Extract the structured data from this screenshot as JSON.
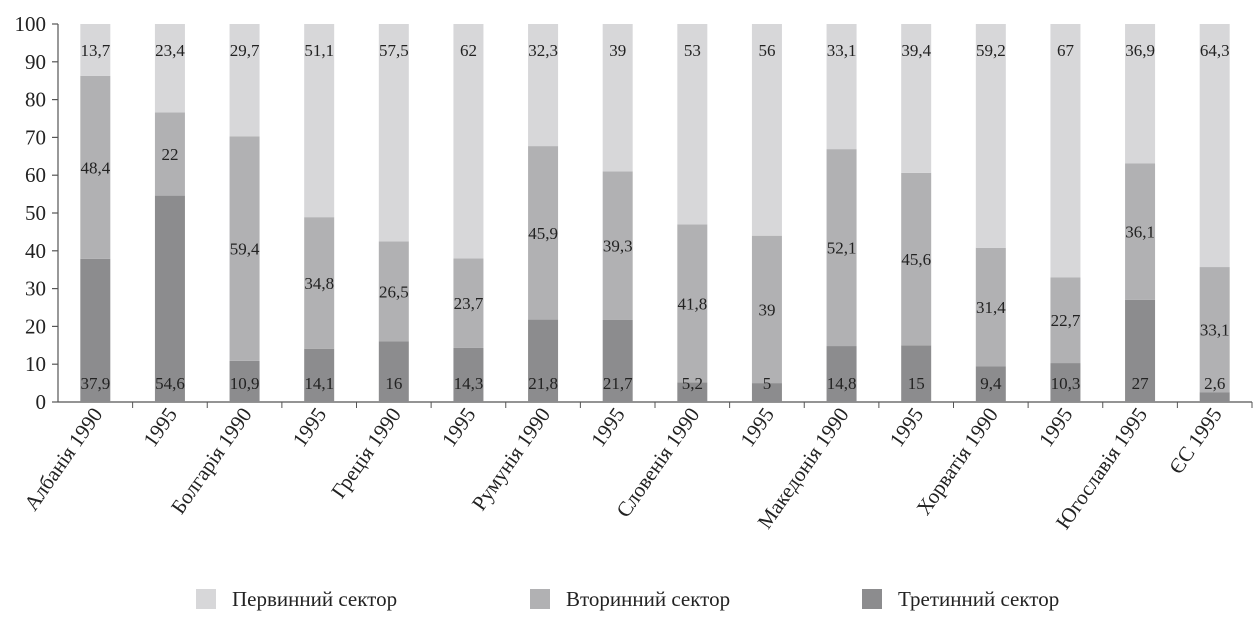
{
  "chart_data": {
    "type": "bar",
    "stacked": true,
    "categories": [
      "Албанія 1990",
      "1995",
      "Болгарія 1990",
      "1995",
      "Греція 1990",
      "1995",
      "Румунія 1990",
      "1995",
      "Словенія 1990",
      "1995",
      "Македонія 1990",
      "1995",
      "Хорватія 1990",
      "1995",
      "Югославія 1995",
      "ЄС 1995"
    ],
    "series": [
      {
        "name": "Третинний сектор",
        "color": "#8c8c8e",
        "values": [
          37.9,
          54.6,
          10.9,
          14.1,
          16,
          14.3,
          21.8,
          21.7,
          5.2,
          5,
          14.8,
          15,
          9.4,
          10.3,
          27,
          2.6
        ],
        "labels": [
          "37,9",
          "54,6",
          "10,9",
          "14,1",
          "16",
          "14,3",
          "21,8",
          "21,7",
          "5,2",
          "5",
          "14,8",
          "15",
          "9,4",
          "10,3",
          "27",
          "2,6"
        ]
      },
      {
        "name": "Вторинний сектор",
        "color": "#b1b1b3",
        "values": [
          48.4,
          22,
          59.4,
          34.8,
          26.5,
          23.7,
          45.9,
          39.3,
          41.8,
          39,
          52.1,
          45.6,
          31.4,
          22.7,
          36.1,
          33.1
        ],
        "labels": [
          "48,4",
          "22",
          "59,4",
          "34,8",
          "26,5",
          "23,7",
          "45,9",
          "39,3",
          "41,8",
          "39",
          "52,1",
          "45,6",
          "31,4",
          "22,7",
          "36,1",
          "33,1"
        ]
      },
      {
        "name": "Первинний сектор",
        "color": "#d7d7d9",
        "values": [
          13.7,
          23.4,
          29.7,
          51.1,
          57.5,
          62,
          32.3,
          39,
          53,
          56,
          33.1,
          39.4,
          59.2,
          67,
          36.9,
          64.3
        ],
        "labels": [
          "13,7",
          "23,4",
          "29,7",
          "51,1",
          "57,5",
          "62",
          "32,3",
          "39",
          "53",
          "56",
          "33,1",
          "39,4",
          "59,2",
          "67",
          "36,9",
          "64,3"
        ]
      }
    ],
    "ylim": [
      0,
      100
    ],
    "yticks": [
      "0",
      "10",
      "20",
      "30",
      "40",
      "50",
      "60",
      "70",
      "80",
      "90",
      "100"
    ],
    "legend": {
      "position": "bottom",
      "items": [
        {
          "name": "Первинний сектор",
          "color": "#d7d7d9"
        },
        {
          "name": "Вторинний сектор",
          "color": "#b1b1b3"
        },
        {
          "name": "Третинний сектор",
          "color": "#8c8c8e"
        }
      ]
    },
    "grid": false
  }
}
